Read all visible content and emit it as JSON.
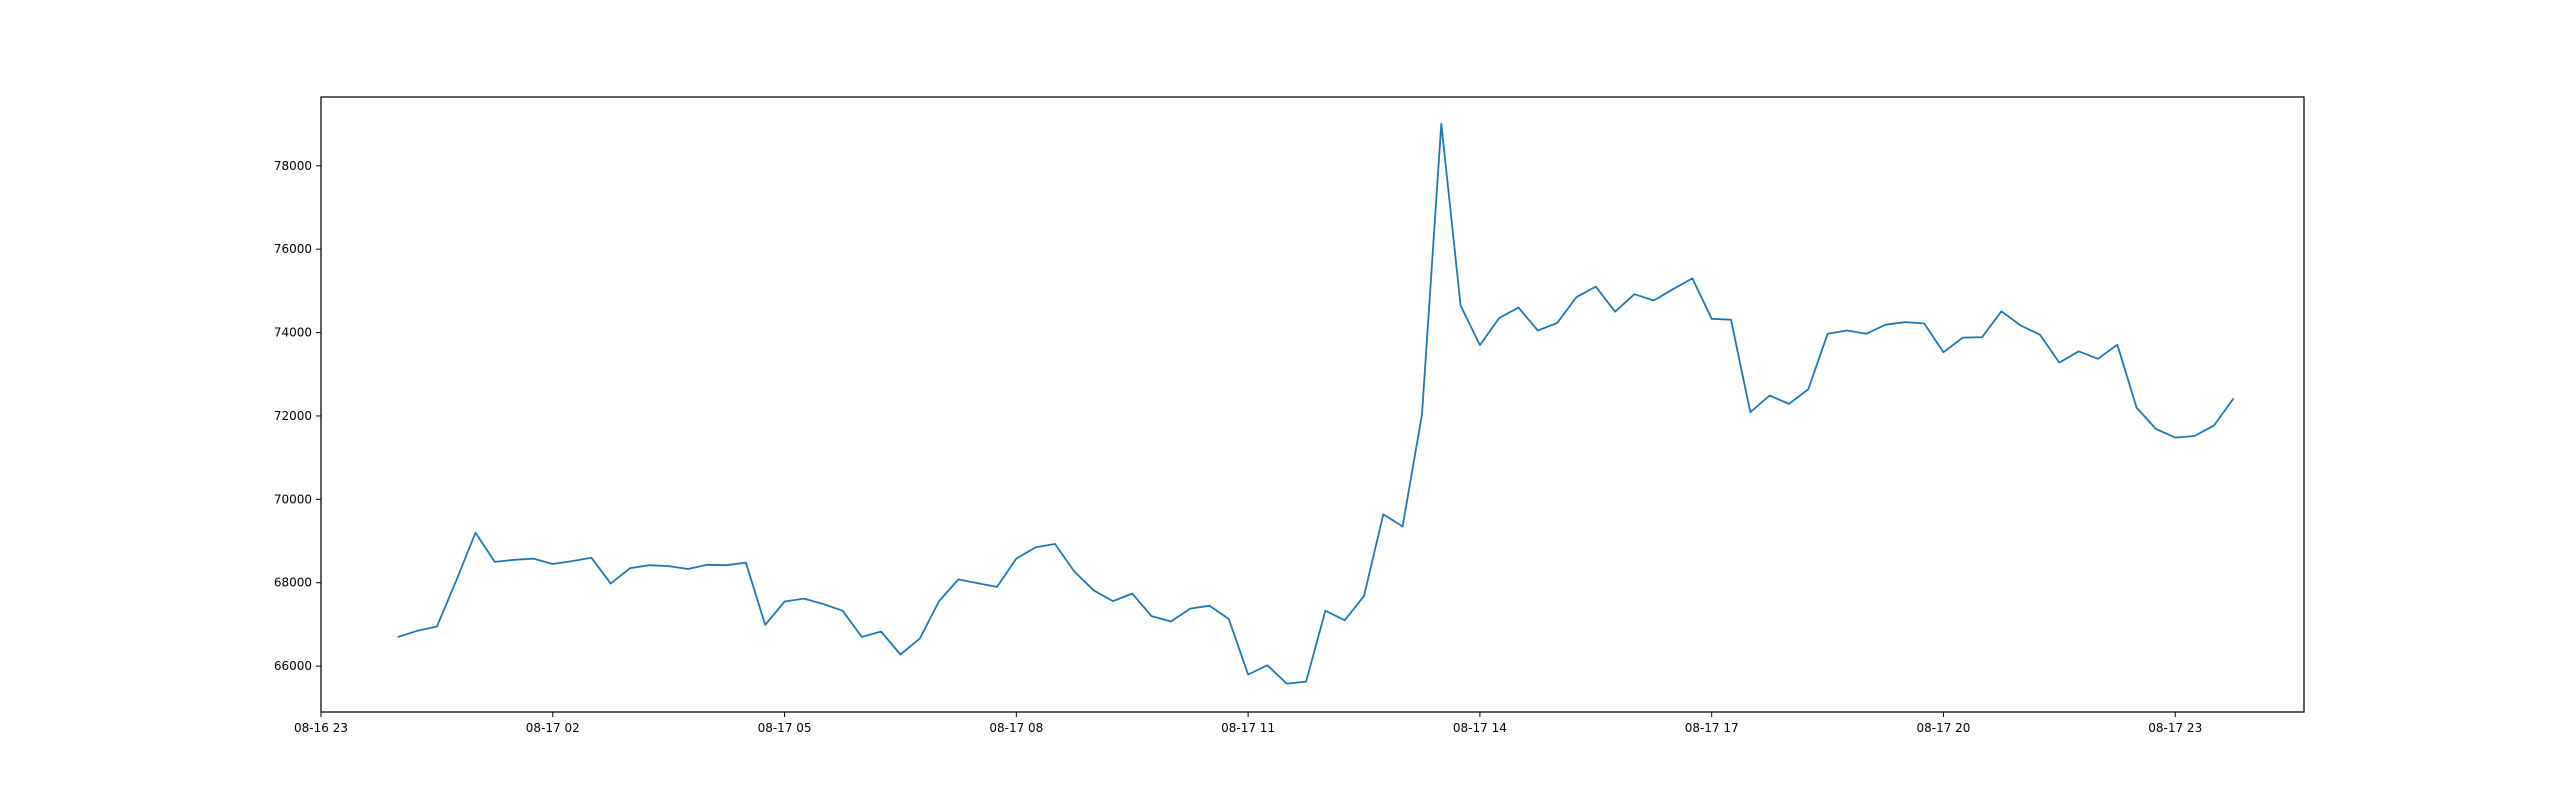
{
  "chart_data": {
    "type": "line",
    "title": "",
    "xlabel": "",
    "ylabel": "",
    "grid": false,
    "legend": "none",
    "colors": {
      "series": "#1f77b4",
      "axes": "#000000",
      "background": "#ffffff"
    },
    "xlim": [
      "08-16 23:00",
      "08-18 00:40"
    ],
    "ylim": [
      64900,
      79650
    ],
    "x_ticks": [
      {
        "label": "08-16 23",
        "value": "08-16 23:00"
      },
      {
        "label": "08-17 02",
        "value": "08-17 02:00"
      },
      {
        "label": "08-17 05",
        "value": "08-17 05:00"
      },
      {
        "label": "08-17 08",
        "value": "08-17 08:00"
      },
      {
        "label": "08-17 11",
        "value": "08-17 11:00"
      },
      {
        "label": "08-17 14",
        "value": "08-17 14:00"
      },
      {
        "label": "08-17 17",
        "value": "08-17 17:00"
      },
      {
        "label": "08-17 20",
        "value": "08-17 20:00"
      },
      {
        "label": "08-17 23",
        "value": "08-17 23:00"
      }
    ],
    "y_ticks": [
      {
        "label": "66000",
        "value": 66000
      },
      {
        "label": "68000",
        "value": 68000
      },
      {
        "label": "70000",
        "value": 70000
      },
      {
        "label": "72000",
        "value": 72000
      },
      {
        "label": "74000",
        "value": 74000
      },
      {
        "label": "76000",
        "value": 76000
      },
      {
        "label": "78000",
        "value": 78000
      }
    ],
    "series": [
      {
        "x": [
          "08-17 00:00",
          "08-17 00:15",
          "08-17 00:30",
          "08-17 00:45",
          "08-17 01:00",
          "08-17 01:15",
          "08-17 01:30",
          "08-17 01:45",
          "08-17 02:00",
          "08-17 02:15",
          "08-17 02:30",
          "08-17 02:45",
          "08-17 03:00",
          "08-17 03:15",
          "08-17 03:30",
          "08-17 03:45",
          "08-17 04:00",
          "08-17 04:15",
          "08-17 04:30",
          "08-17 04:45",
          "08-17 05:00",
          "08-17 05:15",
          "08-17 05:30",
          "08-17 05:45",
          "08-17 06:00",
          "08-17 06:15",
          "08-17 06:30",
          "08-17 06:45",
          "08-17 07:00",
          "08-17 07:15",
          "08-17 07:30",
          "08-17 07:45",
          "08-17 08:00",
          "08-17 08:15",
          "08-17 08:30",
          "08-17 08:45",
          "08-17 09:00",
          "08-17 09:15",
          "08-17 09:30",
          "08-17 09:45",
          "08-17 10:00",
          "08-17 10:15",
          "08-17 10:30",
          "08-17 10:45",
          "08-17 11:00",
          "08-17 11:15",
          "08-17 11:30",
          "08-17 11:45",
          "08-17 12:00",
          "08-17 12:15",
          "08-17 12:30",
          "08-17 12:45",
          "08-17 13:00",
          "08-17 13:15",
          "08-17 13:30",
          "08-17 13:45",
          "08-17 14:00",
          "08-17 14:15",
          "08-17 14:30",
          "08-17 14:45",
          "08-17 15:00",
          "08-17 15:15",
          "08-17 15:30",
          "08-17 15:45",
          "08-17 16:00",
          "08-17 16:15",
          "08-17 16:30",
          "08-17 16:45",
          "08-17 17:00",
          "08-17 17:15",
          "08-17 17:30",
          "08-17 17:45",
          "08-17 18:00",
          "08-17 18:15",
          "08-17 18:30",
          "08-17 18:45",
          "08-17 19:00",
          "08-17 19:15",
          "08-17 19:30",
          "08-17 19:45",
          "08-17 20:00",
          "08-17 20:15",
          "08-17 20:30",
          "08-17 20:45",
          "08-17 21:00",
          "08-17 21:15",
          "08-17 21:30",
          "08-17 21:45",
          "08-17 22:00",
          "08-17 22:15",
          "08-17 22:30",
          "08-17 22:45",
          "08-17 23:00",
          "08-17 23:15",
          "08-17 23:30",
          "08-17 23:45"
        ],
        "values": [
          66700,
          66850,
          66950,
          68050,
          69200,
          68500,
          68550,
          68580,
          68450,
          68520,
          68600,
          67980,
          68350,
          68420,
          68400,
          68330,
          68430,
          68420,
          68480,
          66990,
          67550,
          67620,
          67490,
          67330,
          66700,
          66830,
          66280,
          66660,
          67560,
          68080,
          67990,
          67900,
          68580,
          68850,
          68930,
          68270,
          67820,
          67560,
          67740,
          67200,
          67070,
          67380,
          67450,
          67130,
          65800,
          66020,
          65580,
          65630,
          67330,
          67100,
          67680,
          69640,
          69350,
          72040,
          79010,
          74650,
          73700,
          74350,
          74600,
          74050,
          74230,
          74850,
          75100,
          74500,
          74920,
          74770,
          75040,
          75300,
          74330,
          74310,
          72090,
          72490,
          72290,
          72640,
          73970,
          74050,
          73970,
          74190,
          74250,
          74220,
          73530,
          73880,
          73890,
          74510,
          74170,
          73950,
          73280,
          73550,
          73370,
          73710,
          72200,
          71690,
          71480,
          71520,
          71770,
          72410
        ]
      }
    ]
  }
}
